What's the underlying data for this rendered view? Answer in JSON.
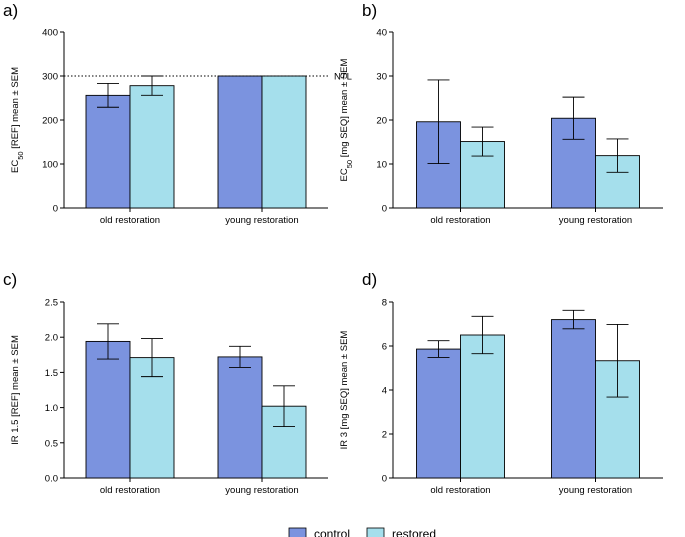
{
  "colors": {
    "control": "#7b93df",
    "restored": "#a5dfec",
    "stroke": "#000000"
  },
  "legend": {
    "items": [
      {
        "key": "control",
        "label": "control"
      },
      {
        "key": "restored",
        "label": "restored"
      }
    ]
  },
  "chart_data": [
    {
      "type": "bar",
      "panel_label": "a)",
      "title": "",
      "xlabel": "",
      "ylabel": {
        "pre": "EC",
        "sub": "50",
        "post": " [REF] mean ± SEM"
      },
      "ylim": [
        0,
        400
      ],
      "yticks": [
        0,
        100,
        200,
        300,
        400
      ],
      "ytick_labels": [
        "0",
        "100",
        "200",
        "300",
        "400"
      ],
      "categories": [
        "old restoration",
        "young restoration"
      ],
      "series": [
        {
          "name": "control",
          "values": [
            256,
            300
          ],
          "errors": [
            27,
            0
          ]
        },
        {
          "name": "restored",
          "values": [
            278,
            300
          ],
          "errors": [
            22,
            0
          ]
        }
      ],
      "reference_line": {
        "value": 300,
        "label": "NTL",
        "style": "dotted"
      }
    },
    {
      "type": "bar",
      "panel_label": "b)",
      "title": "",
      "xlabel": "",
      "ylabel": {
        "pre": "EC",
        "sub": "50",
        "post": " [mg SEQ] mean ± SEM"
      },
      "ylim": [
        0,
        40
      ],
      "yticks": [
        0,
        10,
        20,
        30,
        40
      ],
      "ytick_labels": [
        "0",
        "10",
        "20",
        "30",
        "40"
      ],
      "categories": [
        "old restoration",
        "young restoration"
      ],
      "series": [
        {
          "name": "control",
          "values": [
            19.6,
            20.4
          ],
          "errors": [
            9.5,
            4.8
          ]
        },
        {
          "name": "restored",
          "values": [
            15.1,
            11.9
          ],
          "errors": [
            3.3,
            3.8
          ]
        }
      ]
    },
    {
      "type": "bar",
      "panel_label": "c)",
      "title": "",
      "xlabel": "",
      "ylabel": {
        "pre": "IR 1.5 [REF] mean ± SEM",
        "sub": "",
        "post": ""
      },
      "ylim": [
        0,
        2.5
      ],
      "yticks": [
        0,
        0.5,
        1,
        1.5,
        2,
        2.5
      ],
      "ytick_labels": [
        "0.0",
        "0.5",
        "1.0",
        "1.5",
        "2.0",
        "2.5"
      ],
      "categories": [
        "old restoration",
        "young restoration"
      ],
      "series": [
        {
          "name": "control",
          "values": [
            1.94,
            1.72
          ],
          "errors": [
            0.25,
            0.15
          ]
        },
        {
          "name": "restored",
          "values": [
            1.71,
            1.02
          ],
          "errors": [
            0.27,
            0.29
          ]
        }
      ]
    },
    {
      "type": "bar",
      "panel_label": "d)",
      "title": "",
      "xlabel": "",
      "ylabel": {
        "pre": "IR 3 [mg SEQ] mean ± SEM",
        "sub": "",
        "post": ""
      },
      "ylim": [
        0,
        8
      ],
      "yticks": [
        0,
        2,
        4,
        6,
        8
      ],
      "ytick_labels": [
        "0",
        "2",
        "4",
        "6",
        "8"
      ],
      "categories": [
        "old restoration",
        "young restoration"
      ],
      "series": [
        {
          "name": "control",
          "values": [
            5.86,
            7.2
          ],
          "errors": [
            0.38,
            0.42
          ]
        },
        {
          "name": "restored",
          "values": [
            6.5,
            5.33
          ],
          "errors": [
            0.85,
            1.65
          ]
        }
      ]
    }
  ]
}
